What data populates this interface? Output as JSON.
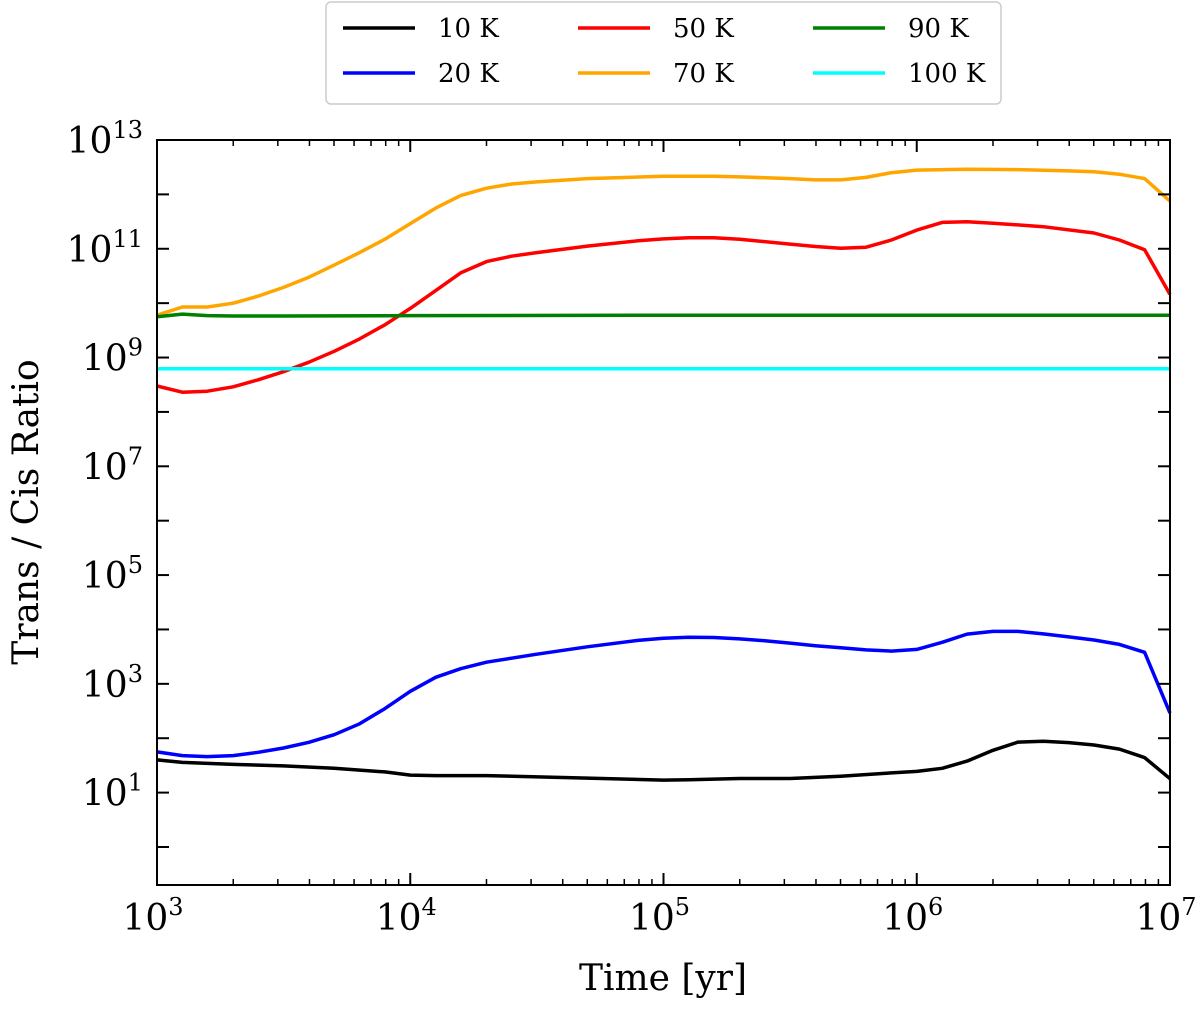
{
  "chart_data": {
    "type": "line",
    "title": "",
    "xlabel": "Time [yr]",
    "ylabel": "Trans / Cis Ratio",
    "xscale": "log",
    "yscale": "log",
    "xlim": [
      1000,
      10000000
    ],
    "ylim": [
      0.2,
      10000000000000.0
    ],
    "legend_location": "top-center-outside",
    "x_ticks": [
      {
        "value": 1000,
        "base": "10",
        "exp": "3"
      },
      {
        "value": 10000,
        "base": "10",
        "exp": "4"
      },
      {
        "value": 100000,
        "base": "10",
        "exp": "5"
      },
      {
        "value": 1000000,
        "base": "10",
        "exp": "6"
      },
      {
        "value": 10000000,
        "base": "10",
        "exp": "7"
      }
    ],
    "y_ticks": [
      {
        "value": 10,
        "base": "10",
        "exp": "1"
      },
      {
        "value": 1000,
        "base": "10",
        "exp": "3"
      },
      {
        "value": 100000,
        "base": "10",
        "exp": "5"
      },
      {
        "value": 10000000,
        "base": "10",
        "exp": "7"
      },
      {
        "value": 1000000000,
        "base": "10",
        "exp": "9"
      },
      {
        "value": 100000000000,
        "base": "10",
        "exp": "11"
      },
      {
        "value": 10000000000000,
        "base": "10",
        "exp": "13"
      }
    ],
    "series": [
      {
        "name": "10 K",
        "color": "#000000",
        "x": [
          1000,
          1260,
          2000,
          3160,
          5000,
          7940,
          10000,
          12600,
          20000,
          50000,
          100000,
          126000,
          200000,
          316000,
          500000,
          794000,
          1000000,
          1260000,
          1580000,
          2000000,
          2510000,
          3160000,
          3980000,
          5010000,
          6310000,
          7940000,
          10000000
        ],
        "y": [
          40,
          36,
          33,
          31,
          28,
          24,
          21,
          20.5,
          20.5,
          18.5,
          17,
          17.2,
          18.2,
          18.2,
          20,
          23,
          24.5,
          28,
          38,
          60,
          85,
          88,
          83,
          75,
          63,
          44,
          18
        ]
      },
      {
        "name": "20 K",
        "color": "#0000ff",
        "x": [
          1000,
          1260,
          1580,
          2000,
          2510,
          3160,
          3980,
          5010,
          6310,
          7940,
          10000,
          12600,
          15800,
          20000,
          31600,
          50000,
          79400,
          100000,
          126000,
          158000,
          200000,
          251000,
          316000,
          398000,
          501000,
          631000,
          794000,
          1000000,
          1260000,
          1580000,
          2000000,
          2510000,
          3160000,
          3980000,
          5010000,
          6310000,
          7940000,
          10000000
        ],
        "y": [
          56,
          48,
          46,
          48,
          55,
          66,
          84,
          116,
          184,
          350,
          730,
          1320,
          1900,
          2500,
          3500,
          4800,
          6300,
          6900,
          7200,
          7100,
          6700,
          6200,
          5600,
          5000,
          4600,
          4200,
          4000,
          4300,
          5800,
          8200,
          9200,
          9200,
          8300,
          7300,
          6400,
          5300,
          3800,
          290
        ]
      },
      {
        "name": "50 K",
        "color": "#ff0000",
        "x": [
          1000,
          1260,
          1580,
          2000,
          2510,
          3160,
          3980,
          5010,
          6310,
          7940,
          10000,
          12600,
          15800,
          20000,
          25100,
          31600,
          50000,
          79400,
          100000,
          126000,
          158000,
          200000,
          316000,
          398000,
          501000,
          631000,
          794000,
          1000000,
          1260000,
          1580000,
          2000000,
          3160000,
          5010000,
          6310000,
          7940000,
          10000000
        ],
        "y": [
          300000000.0,
          230000000.0,
          240000000.0,
          290000000.0,
          390000000.0,
          550000000.0,
          820000000.0,
          1300000000.0,
          2200000000.0,
          4000000000.0,
          8000000000.0,
          17000000000.0,
          36000000000.0,
          58000000000.0,
          73000000000.0,
          85000000000.0,
          112000000000.0,
          140000000000.0,
          152000000000.0,
          160000000000.0,
          160000000000.0,
          150000000000.0,
          122000000000.0,
          110000000000.0,
          102000000000.0,
          107000000000.0,
          145000000000.0,
          220000000000.0,
          305000000000.0,
          315000000000.0,
          295000000000.0,
          255000000000.0,
          195000000000.0,
          145000000000.0,
          96000000000.0,
          14500000000.0
        ]
      },
      {
        "name": "70 K",
        "color": "#ffa500",
        "x": [
          1000,
          1260,
          1580,
          2000,
          2510,
          3160,
          3980,
          5010,
          6310,
          7940,
          10000,
          12600,
          15800,
          20000,
          25100,
          31600,
          50000,
          100000,
          158000,
          200000,
          316000,
          398000,
          501000,
          631000,
          794000,
          1000000,
          1580000,
          2510000,
          3980000,
          5010000,
          6310000,
          7940000,
          10000000
        ],
        "y": [
          6000000000.0,
          8500000000.0,
          8500000000.0,
          10000000000.0,
          13500000000.0,
          19500000000.0,
          30000000000.0,
          50000000000.0,
          85000000000.0,
          150000000000.0,
          290000000000.0,
          560000000000.0,
          950000000000.0,
          1300000000000.0,
          1550000000000.0,
          1700000000000.0,
          1950000000000.0,
          2150000000000.0,
          2150000000000.0,
          2100000000000.0,
          1950000000000.0,
          1850000000000.0,
          1850000000000.0,
          2050000000000.0,
          2500000000000.0,
          2800000000000.0,
          2900000000000.0,
          2850000000000.0,
          2700000000000.0,
          2600000000000.0,
          2350000000000.0,
          1950000000000.0,
          750000000000.0
        ]
      },
      {
        "name": "90 K",
        "color": "#008000",
        "x": [
          1000,
          1260,
          1580,
          2000,
          3160,
          10000,
          100000,
          1000000,
          10000000
        ],
        "y": [
          5600000000.0,
          6300000000.0,
          5900000000.0,
          5800000000.0,
          5800000000.0,
          5900000000.0,
          6000000000.0,
          6000000000.0,
          6000000000.0
        ]
      },
      {
        "name": "100 K",
        "color": "#00ffff",
        "x": [
          1000,
          10000,
          100000,
          1000000,
          10000000
        ],
        "y": [
          620000000.0,
          620000000.0,
          620000000.0,
          620000000.0,
          620000000.0
        ]
      }
    ]
  }
}
